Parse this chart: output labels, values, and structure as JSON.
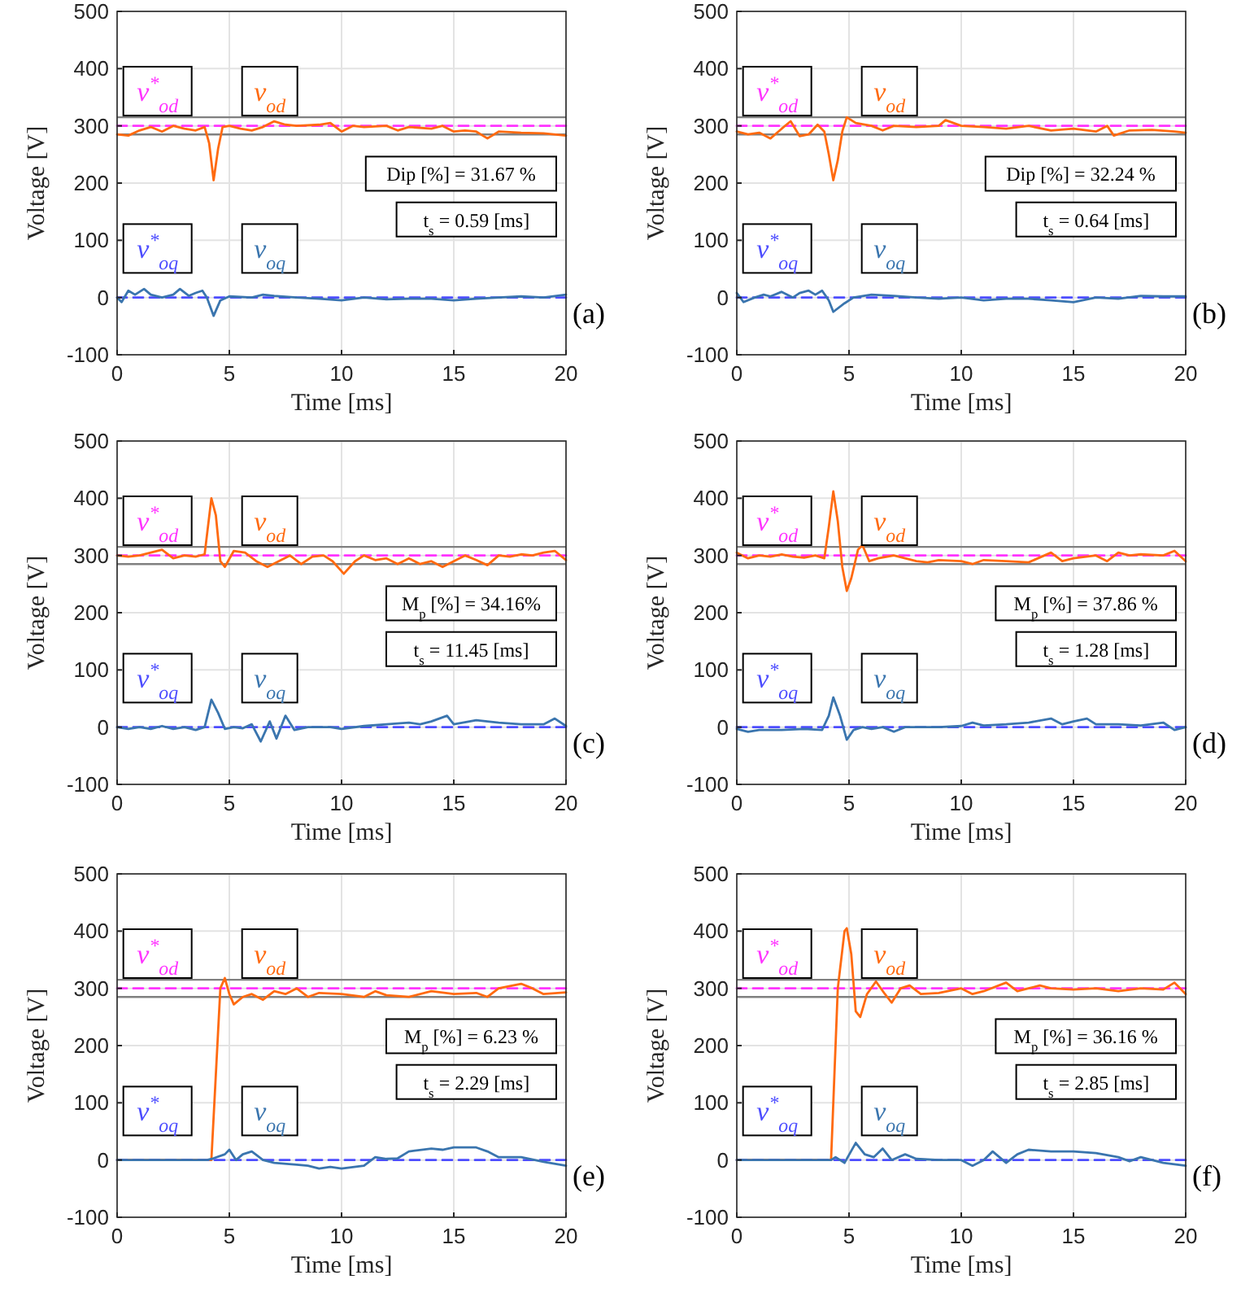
{
  "chart_data": [
    {
      "type": "line",
      "xlabel": "Time [ms]",
      "ylabel": "Voltage [V]",
      "xlim": [
        0,
        20
      ],
      "ylim": [
        -100,
        500
      ],
      "xticks": [
        0,
        5,
        10,
        15,
        20
      ],
      "yticks": [
        -100,
        0,
        100,
        200,
        300,
        400,
        500
      ],
      "grid": true,
      "annotations": [
        "Dip [%] = 31.67 %",
        "t$_{s}$ = 0.59 [ms]",
        "(a)"
      ],
      "ref_lines": [
        {
          "axis": "y",
          "value": 315,
          "color": "#808080"
        },
        {
          "axis": "y",
          "value": 285,
          "color": "#808080"
        }
      ],
      "series": [
        {
          "name": "v$^{*}$$_{od}$",
          "color": "#ff33ff",
          "line_style": "dashed",
          "x": [
            0,
            20
          ],
          "values": [
            300,
            300
          ]
        },
        {
          "name": "v$_{od}$",
          "color": "#ff6a10",
          "line_style": "solid",
          "x": [
            0,
            0.5,
            1,
            1.5,
            2,
            2.5,
            3,
            3.5,
            3.9,
            4.1,
            4.3,
            4.5,
            4.7,
            5,
            5.5,
            6,
            6.5,
            7,
            7.5,
            8,
            9,
            9.5,
            10,
            10.5,
            11,
            12,
            12.5,
            13,
            14,
            14.5,
            15,
            15.5,
            16,
            16.5,
            17,
            18,
            19,
            20
          ],
          "values": [
            285,
            283,
            292,
            298,
            290,
            300,
            295,
            292,
            298,
            270,
            205,
            260,
            298,
            300,
            295,
            292,
            298,
            308,
            302,
            300,
            302,
            305,
            290,
            300,
            298,
            300,
            292,
            298,
            295,
            300,
            290,
            292,
            290,
            278,
            290,
            288,
            287,
            283
          ]
        },
        {
          "name": "v$^{*}$$_{oq}$",
          "color": "#4d4dff",
          "line_style": "dashed",
          "x": [
            0,
            20
          ],
          "values": [
            0,
            0
          ]
        },
        {
          "name": "v$_{oq}$",
          "color": "#3a75ae",
          "line_style": "solid",
          "x": [
            0,
            0.2,
            0.5,
            0.8,
            1.2,
            1.5,
            2,
            2.5,
            2.8,
            3.2,
            3.5,
            3.8,
            4,
            4.3,
            4.6,
            5,
            6,
            6.5,
            7,
            8,
            9,
            10,
            11,
            12,
            13,
            14,
            15,
            16,
            17,
            18,
            19,
            20
          ],
          "values": [
            0,
            -8,
            12,
            5,
            15,
            5,
            0,
            5,
            15,
            3,
            8,
            12,
            0,
            -32,
            -5,
            2,
            0,
            5,
            3,
            0,
            -2,
            -5,
            0,
            -3,
            -2,
            -2,
            -5,
            -2,
            0,
            2,
            0,
            5
          ]
        }
      ]
    },
    {
      "type": "line",
      "xlabel": "Time [ms]",
      "ylabel": "Voltage [V]",
      "xlim": [
        0,
        20
      ],
      "ylim": [
        -100,
        500
      ],
      "xticks": [
        0,
        5,
        10,
        15,
        20
      ],
      "yticks": [
        -100,
        0,
        100,
        200,
        300,
        400,
        500
      ],
      "grid": true,
      "annotations": [
        "Dip [%] = 32.24 %",
        "t$_{s}$ = 0.64 [ms]",
        "(b)"
      ],
      "ref_lines": [
        {
          "axis": "y",
          "value": 315,
          "color": "#808080"
        },
        {
          "axis": "y",
          "value": 285,
          "color": "#808080"
        }
      ],
      "series": [
        {
          "name": "v$^{*}$$_{od}$",
          "color": "#ff33ff",
          "line_style": "dashed",
          "x": [
            0,
            20
          ],
          "values": [
            300,
            300
          ]
        },
        {
          "name": "v$_{od}$",
          "color": "#ff6a10",
          "line_style": "solid",
          "x": [
            0,
            0.5,
            1,
            1.5,
            2,
            2.4,
            2.8,
            3.2,
            3.6,
            3.9,
            4.1,
            4.3,
            4.5,
            4.7,
            4.9,
            5.3,
            6,
            6.5,
            7,
            8,
            9,
            9.3,
            10,
            11,
            12,
            13,
            14,
            15,
            16,
            16.5,
            16.8,
            17.5,
            18.5,
            19.5,
            20
          ],
          "values": [
            290,
            285,
            288,
            278,
            295,
            308,
            282,
            285,
            302,
            290,
            250,
            205,
            240,
            290,
            315,
            305,
            300,
            292,
            300,
            298,
            300,
            310,
            300,
            298,
            295,
            300,
            292,
            295,
            290,
            300,
            283,
            292,
            293,
            290,
            288
          ]
        },
        {
          "name": "v$^{*}$$_{oq}$",
          "color": "#4d4dff",
          "line_style": "dashed",
          "x": [
            0,
            20
          ],
          "values": [
            0,
            0
          ]
        },
        {
          "name": "v$_{oq}$",
          "color": "#3a75ae",
          "line_style": "solid",
          "x": [
            0,
            0.3,
            0.8,
            1.2,
            1.5,
            2,
            2.5,
            2.8,
            3.2,
            3.5,
            3.8,
            4.1,
            4.3,
            4.8,
            5.2,
            6,
            7,
            8,
            9,
            10,
            11,
            12,
            13,
            14,
            15,
            16,
            17,
            18,
            19,
            20
          ],
          "values": [
            8,
            -8,
            0,
            5,
            2,
            10,
            0,
            8,
            12,
            5,
            12,
            -5,
            -25,
            -10,
            0,
            5,
            3,
            0,
            -2,
            0,
            -5,
            -2,
            -2,
            -5,
            -8,
            0,
            -2,
            3,
            2,
            2
          ]
        }
      ]
    },
    {
      "type": "line",
      "xlabel": "Time [ms]",
      "ylabel": "Voltage [V]",
      "xlim": [
        0,
        20
      ],
      "ylim": [
        -100,
        500
      ],
      "xticks": [
        0,
        5,
        10,
        15,
        20
      ],
      "yticks": [
        -100,
        0,
        100,
        200,
        300,
        400,
        500
      ],
      "grid": true,
      "annotations": [
        "M$_{p}$ [%] = 34.16%",
        "t$_{s}$ = 11.45 [ms]",
        "(c)"
      ],
      "ref_lines": [
        {
          "axis": "y",
          "value": 315,
          "color": "#808080"
        },
        {
          "axis": "y",
          "value": 285,
          "color": "#808080"
        }
      ],
      "series": [
        {
          "name": "v$^{*}$$_{od}$",
          "color": "#ff33ff",
          "line_style": "dashed",
          "x": [
            0,
            20
          ],
          "values": [
            300,
            300
          ]
        },
        {
          "name": "v$_{od}$",
          "color": "#ff6a10",
          "line_style": "solid",
          "x": [
            0,
            0.5,
            1,
            1.5,
            2,
            2.5,
            3,
            3.5,
            3.9,
            4.2,
            4.4,
            4.6,
            4.8,
            5.2,
            5.7,
            6.2,
            6.7,
            7.2,
            7.7,
            8.2,
            8.7,
            9.2,
            9.6,
            10.1,
            10.6,
            11,
            11.5,
            12,
            12.5,
            13,
            13.5,
            14,
            14.5,
            15,
            15.5,
            16,
            16.5,
            17,
            17.5,
            18,
            18.5,
            19,
            19.5,
            20
          ],
          "values": [
            300,
            298,
            300,
            305,
            310,
            295,
            300,
            298,
            302,
            400,
            370,
            290,
            280,
            308,
            305,
            290,
            280,
            290,
            300,
            285,
            298,
            300,
            290,
            268,
            290,
            300,
            292,
            295,
            285,
            295,
            285,
            290,
            280,
            290,
            300,
            292,
            283,
            300,
            298,
            302,
            300,
            305,
            308,
            292
          ]
        },
        {
          "name": "v$^{*}$$_{oq}$",
          "color": "#4d4dff",
          "line_style": "dashed",
          "x": [
            0,
            20
          ],
          "values": [
            0,
            0
          ]
        },
        {
          "name": "v$_{oq}$",
          "color": "#3a75ae",
          "line_style": "solid",
          "x": [
            0,
            0.5,
            1,
            1.5,
            2,
            2.5,
            3,
            3.5,
            3.9,
            4.2,
            4.5,
            4.8,
            5.2,
            5.6,
            6,
            6.4,
            6.8,
            7.1,
            7.5,
            7.9,
            8.5,
            9.5,
            10,
            11,
            12,
            13,
            13.5,
            14,
            14.7,
            15,
            16,
            17,
            18,
            19,
            19.5,
            20
          ],
          "values": [
            0,
            -3,
            0,
            -3,
            2,
            -3,
            0,
            -5,
            0,
            48,
            25,
            -3,
            0,
            -2,
            5,
            -25,
            10,
            -20,
            20,
            -5,
            0,
            0,
            -3,
            2,
            5,
            8,
            5,
            10,
            20,
            5,
            12,
            8,
            5,
            5,
            15,
            2
          ]
        }
      ]
    },
    {
      "type": "line",
      "xlabel": "Time [ms]",
      "ylabel": "Voltage [V]",
      "xlim": [
        0,
        20
      ],
      "ylim": [
        -100,
        500
      ],
      "xticks": [
        0,
        5,
        10,
        15,
        20
      ],
      "yticks": [
        -100,
        0,
        100,
        200,
        300,
        400,
        500
      ],
      "grid": true,
      "annotations": [
        "M$_{p}$ [%] = 37.86 %",
        "t$_{s}$ = 1.28 [ms]",
        "(d)"
      ],
      "ref_lines": [
        {
          "axis": "y",
          "value": 315,
          "color": "#808080"
        },
        {
          "axis": "y",
          "value": 285,
          "color": "#808080"
        }
      ],
      "series": [
        {
          "name": "v$^{*}$$_{od}$",
          "color": "#ff33ff",
          "line_style": "dashed",
          "x": [
            0,
            20
          ],
          "values": [
            300,
            300
          ]
        },
        {
          "name": "v$_{od}$",
          "color": "#ff6a10",
          "line_style": "solid",
          "x": [
            0,
            0.5,
            1,
            1.5,
            2,
            2.5,
            3,
            3.5,
            3.9,
            4.1,
            4.3,
            4.5,
            4.7,
            4.9,
            5.1,
            5.4,
            5.6,
            5.9,
            6.3,
            7,
            7.5,
            8,
            8.5,
            9,
            10,
            10.5,
            11,
            12,
            13,
            14,
            14.5,
            15,
            16,
            16.5,
            17,
            17.5,
            18,
            19,
            19.5,
            20
          ],
          "values": [
            305,
            295,
            300,
            298,
            302,
            298,
            296,
            300,
            295,
            350,
            412,
            360,
            280,
            238,
            260,
            310,
            318,
            290,
            295,
            300,
            295,
            290,
            288,
            292,
            290,
            285,
            292,
            290,
            288,
            305,
            290,
            295,
            300,
            290,
            305,
            300,
            302,
            300,
            308,
            290
          ]
        },
        {
          "name": "v$^{*}$$_{oq}$",
          "color": "#4d4dff",
          "line_style": "dashed",
          "x": [
            0,
            20
          ],
          "values": [
            0,
            0
          ]
        },
        {
          "name": "v$_{oq}$",
          "color": "#3a75ae",
          "line_style": "solid",
          "x": [
            0,
            0.5,
            1,
            2,
            3,
            3.8,
            4.1,
            4.3,
            4.6,
            4.9,
            5.2,
            5.6,
            6,
            6.5,
            7,
            7.5,
            8,
            9,
            10,
            10.5,
            11,
            12,
            13,
            14,
            14.5,
            15,
            15.6,
            16,
            17,
            18,
            19,
            19.5,
            20
          ],
          "values": [
            -3,
            -8,
            -5,
            -5,
            -3,
            -5,
            20,
            52,
            20,
            -22,
            -5,
            0,
            -3,
            0,
            -8,
            0,
            0,
            0,
            2,
            8,
            3,
            5,
            8,
            15,
            5,
            10,
            15,
            5,
            5,
            3,
            8,
            -5,
            0
          ]
        }
      ]
    },
    {
      "type": "line",
      "xlabel": "Time [ms]",
      "ylabel": "Voltage [V]",
      "xlim": [
        0,
        20
      ],
      "ylim": [
        -100,
        500
      ],
      "xticks": [
        0,
        5,
        10,
        15,
        20
      ],
      "yticks": [
        -100,
        0,
        100,
        200,
        300,
        400,
        500
      ],
      "grid": true,
      "annotations": [
        "M$_{p}$ [%] = 6.23 %",
        "t$_{s}$ = 2.29 [ms]",
        "(e)"
      ],
      "ref_lines": [
        {
          "axis": "y",
          "value": 315,
          "color": "#808080"
        },
        {
          "axis": "y",
          "value": 285,
          "color": "#808080"
        }
      ],
      "series": [
        {
          "name": "v$^{*}$$_{od}$",
          "color": "#ff33ff",
          "line_style": "dashed",
          "x": [
            0,
            20
          ],
          "values": [
            300,
            300
          ]
        },
        {
          "name": "v$_{od}$",
          "color": "#ff6a10",
          "line_style": "solid",
          "x": [
            0,
            4.2,
            4.6,
            4.8,
            5,
            5.2,
            5.6,
            6,
            6.5,
            7,
            7.5,
            8,
            8.5,
            9,
            10,
            11,
            11.5,
            12,
            13,
            14,
            15,
            16,
            16.5,
            17,
            18,
            18.5,
            19,
            20
          ],
          "values": [
            0,
            0,
            300,
            318,
            290,
            272,
            285,
            290,
            280,
            295,
            290,
            300,
            285,
            292,
            290,
            285,
            295,
            288,
            285,
            295,
            290,
            292,
            285,
            300,
            308,
            300,
            290,
            293
          ]
        },
        {
          "name": "v$^{*}$$_{oq}$",
          "color": "#4d4dff",
          "line_style": "dashed",
          "x": [
            0,
            20
          ],
          "values": [
            0,
            0
          ]
        },
        {
          "name": "v$_{oq}$",
          "color": "#3a75ae",
          "line_style": "solid",
          "x": [
            0,
            4,
            4.3,
            4.8,
            5,
            5.3,
            5.6,
            6,
            6.5,
            7,
            8,
            8.5,
            9,
            9.5,
            10,
            11,
            11.5,
            12,
            12.5,
            13,
            14,
            14.5,
            15,
            16,
            16.5,
            17,
            18,
            19,
            20
          ],
          "values": [
            0,
            0,
            3,
            10,
            18,
            0,
            10,
            15,
            0,
            -5,
            -8,
            -10,
            -15,
            -12,
            -15,
            -10,
            5,
            2,
            3,
            15,
            20,
            18,
            22,
            22,
            15,
            5,
            5,
            -3,
            -10
          ]
        }
      ]
    },
    {
      "type": "line",
      "xlabel": "Time [ms]",
      "ylabel": "Voltage [V]",
      "xlim": [
        0,
        20
      ],
      "ylim": [
        -100,
        500
      ],
      "xticks": [
        0,
        5,
        10,
        15,
        20
      ],
      "yticks": [
        -100,
        0,
        100,
        200,
        300,
        400,
        500
      ],
      "grid": true,
      "annotations": [
        "M$_{p}$ [%] = 36.16 %",
        "t$_{s}$ = 2.85 [ms]",
        "(f)"
      ],
      "ref_lines": [
        {
          "axis": "y",
          "value": 315,
          "color": "#808080"
        },
        {
          "axis": "y",
          "value": 285,
          "color": "#808080"
        }
      ],
      "series": [
        {
          "name": "v$^{*}$$_{od}$",
          "color": "#ff33ff",
          "line_style": "dashed",
          "x": [
            0,
            20
          ],
          "values": [
            300,
            300
          ]
        },
        {
          "name": "v$_{od}$",
          "color": "#ff6a10",
          "line_style": "solid",
          "x": [
            0,
            4.2,
            4.5,
            4.8,
            4.9,
            5.1,
            5.3,
            5.5,
            5.8,
            6.2,
            6.6,
            6.9,
            7.3,
            7.7,
            8.2,
            9,
            10,
            10.5,
            11,
            12,
            12.5,
            13,
            13.5,
            14,
            15,
            16,
            17,
            18,
            19,
            19.5,
            20
          ],
          "values": [
            0,
            0,
            300,
            400,
            405,
            360,
            260,
            250,
            290,
            312,
            290,
            275,
            300,
            305,
            290,
            292,
            300,
            290,
            295,
            310,
            295,
            300,
            305,
            300,
            298,
            300,
            295,
            300,
            298,
            310,
            290
          ]
        },
        {
          "name": "v$^{*}$$_{oq}$",
          "color": "#4d4dff",
          "line_style": "dashed",
          "x": [
            0,
            20
          ],
          "values": [
            0,
            0
          ]
        },
        {
          "name": "v$_{oq}$",
          "color": "#3a75ae",
          "line_style": "solid",
          "x": [
            0,
            4.2,
            4.4,
            4.8,
            5.3,
            5.7,
            6.1,
            6.5,
            6.9,
            7.5,
            8,
            9,
            10,
            10.5,
            11,
            11.4,
            12,
            12.5,
            13,
            14,
            15,
            16,
            17,
            17.5,
            18,
            19,
            20
          ],
          "values": [
            0,
            0,
            5,
            -5,
            30,
            10,
            5,
            20,
            0,
            10,
            2,
            0,
            0,
            -10,
            0,
            15,
            -5,
            10,
            18,
            15,
            15,
            12,
            5,
            -2,
            5,
            -5,
            -10
          ]
        }
      ]
    }
  ]
}
